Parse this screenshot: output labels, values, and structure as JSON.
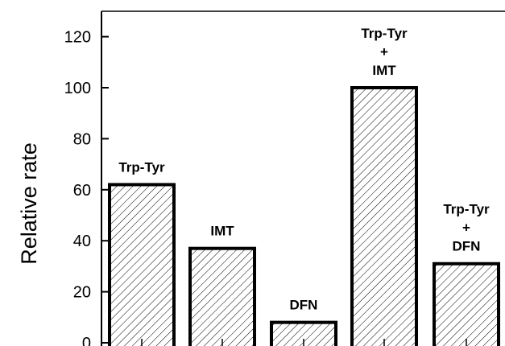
{
  "chart_data": {
    "type": "bar",
    "ylabel": "Relative rate",
    "xlabel": "",
    "ylim": [
      0,
      130
    ],
    "yticks": [
      0,
      20,
      40,
      60,
      80,
      100,
      120
    ],
    "categories": [
      {
        "lines": [
          "Trp-Tyr"
        ],
        "value": 62
      },
      {
        "lines": [
          "IMT"
        ],
        "value": 37
      },
      {
        "lines": [
          "DFN"
        ],
        "value": 8
      },
      {
        "lines": [
          "Trp-Tyr",
          "+",
          "IMT"
        ],
        "value": 100
      },
      {
        "lines": [
          "Trp-Tyr",
          "+",
          "DFN"
        ],
        "value": 31
      }
    ],
    "values": [
      62,
      37,
      8,
      100,
      31
    ],
    "bar_fill": "hatched",
    "grid": false,
    "colors": {
      "bar_stroke": "#000000",
      "hatch": "#000000",
      "background": "#ffffff"
    }
  }
}
